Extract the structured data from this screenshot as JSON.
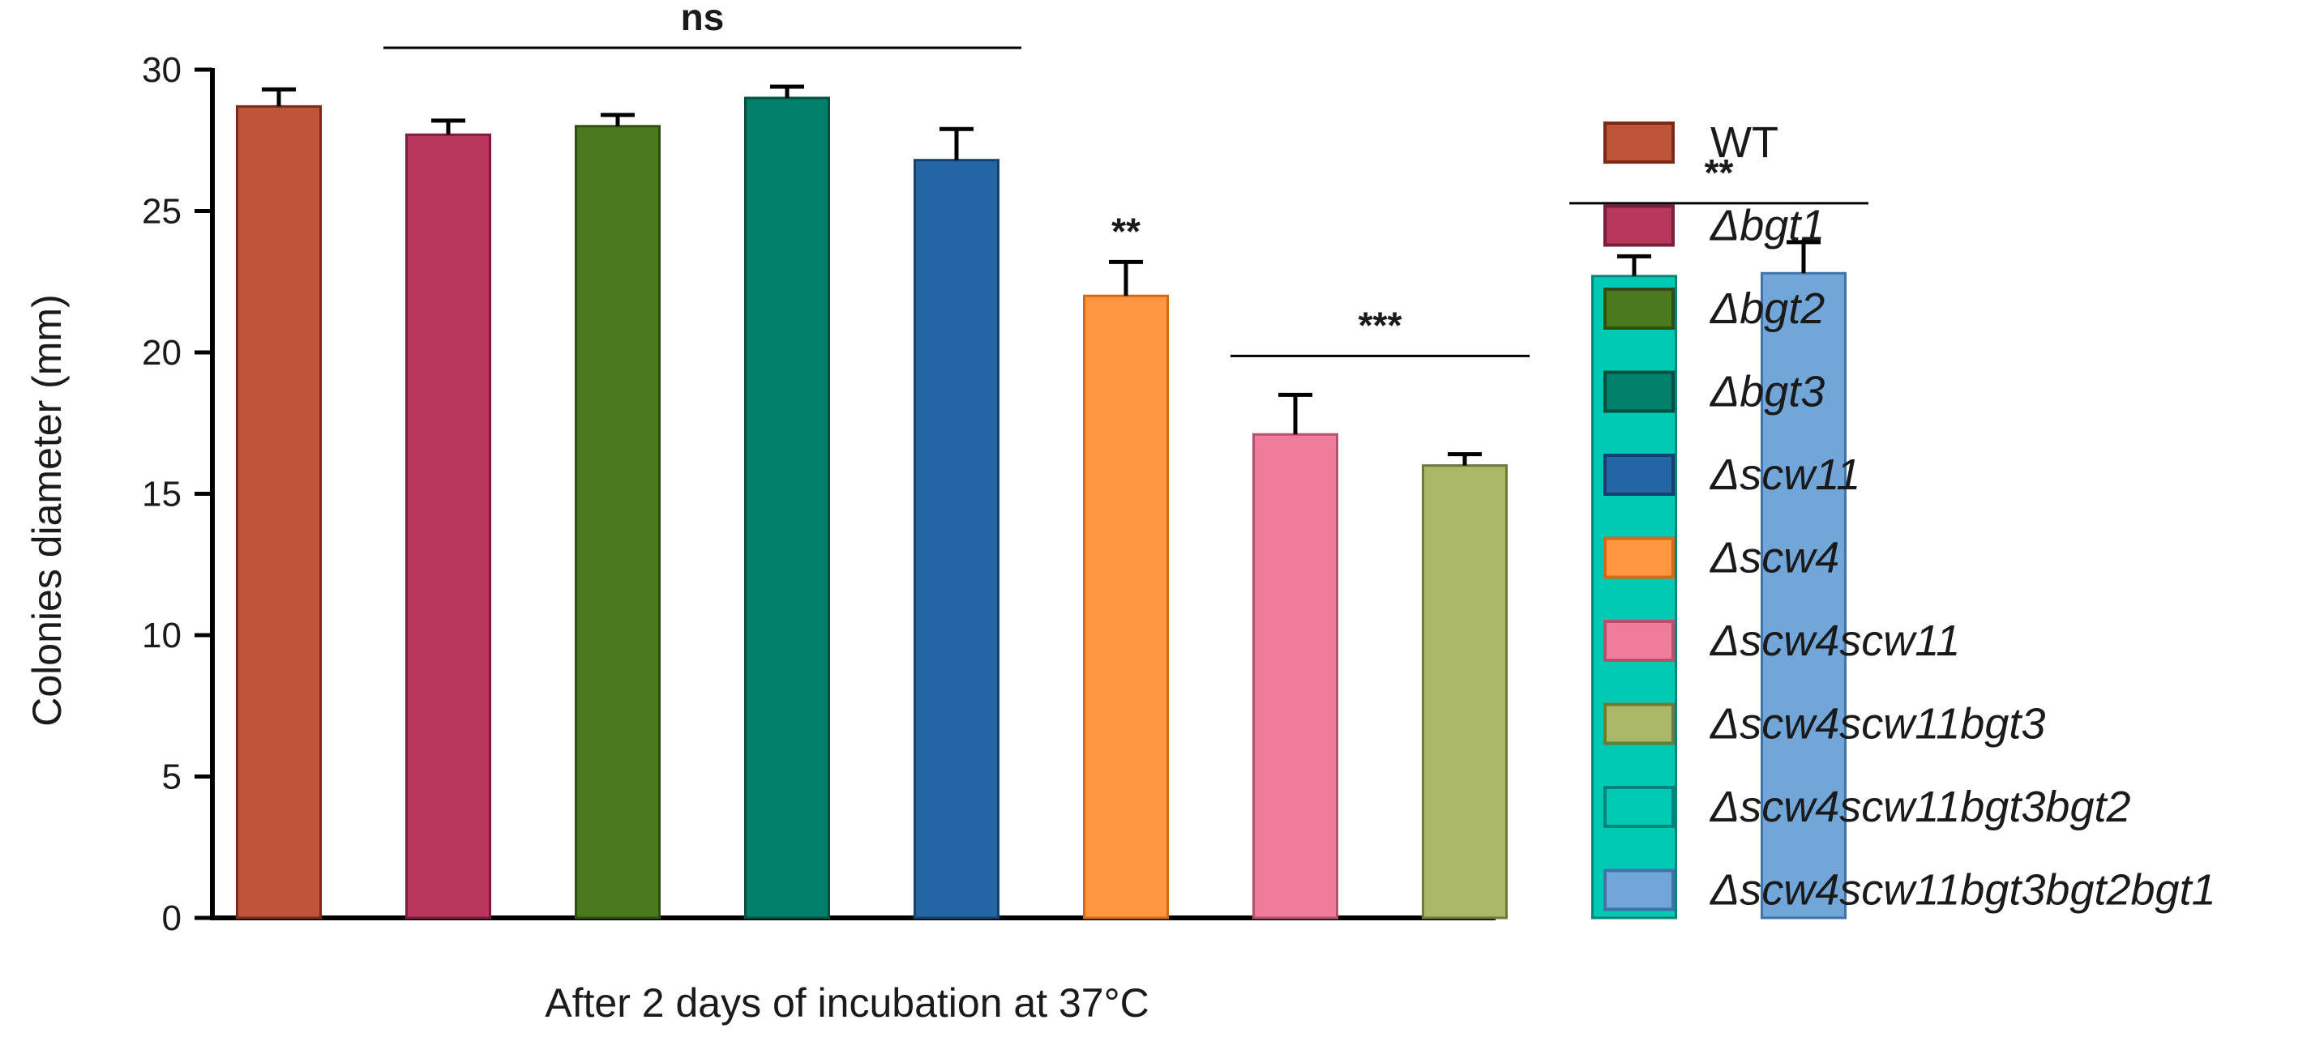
{
  "chart_data": {
    "type": "bar",
    "xlabel": "After 2 days of incubation at 37°C",
    "ylabel": "Colonies diameter  (mm)",
    "ylim": [
      0,
      30
    ],
    "yticks": [
      0,
      5,
      10,
      15,
      20,
      25,
      30
    ],
    "grid": false,
    "legend_position": "right",
    "categories": [
      "WT",
      "Δbgt1",
      "Δbgt2",
      "Δbgt3",
      "Δscw11",
      "Δscw4",
      "Δscw4scw11",
      "Δscw4scw11bgt3",
      "Δscw4scw11bgt3bgt2",
      "Δscw4scw11bgt3bgt2bgt1"
    ],
    "values": [
      28.7,
      27.7,
      28.0,
      29.0,
      26.8,
      22.0,
      17.1,
      16.0,
      22.7,
      22.8
    ],
    "errors": [
      0.6,
      0.5,
      0.4,
      0.4,
      1.1,
      1.2,
      1.4,
      0.4,
      0.7,
      1.1
    ],
    "colors": [
      "#BE5538",
      "#B9365C",
      "#4A7A1E",
      "#00806A",
      "#2466A3",
      "#FF9640",
      "#F07C9C",
      "#A9B766",
      "#00C9B4",
      "#72A6D8"
    ],
    "edge_colors": [
      "#7A2A1A",
      "#7A1F3B",
      "#2F4F12",
      "#00503F",
      "#154070",
      "#D4691A",
      "#B84F6C",
      "#6E7A3A",
      "#00857A",
      "#3F73AA"
    ],
    "legend_italic": [
      false,
      true,
      true,
      true,
      true,
      true,
      true,
      true,
      true,
      true
    ],
    "significance": [
      {
        "label": "ns",
        "from": 1,
        "to": 4,
        "line": true
      },
      {
        "label": "**",
        "from": 5,
        "to": 5,
        "line": false
      },
      {
        "label": "***",
        "from": 6,
        "to": 7,
        "line": true
      },
      {
        "label": "**",
        "from": 8,
        "to": 9,
        "line": true
      }
    ]
  }
}
